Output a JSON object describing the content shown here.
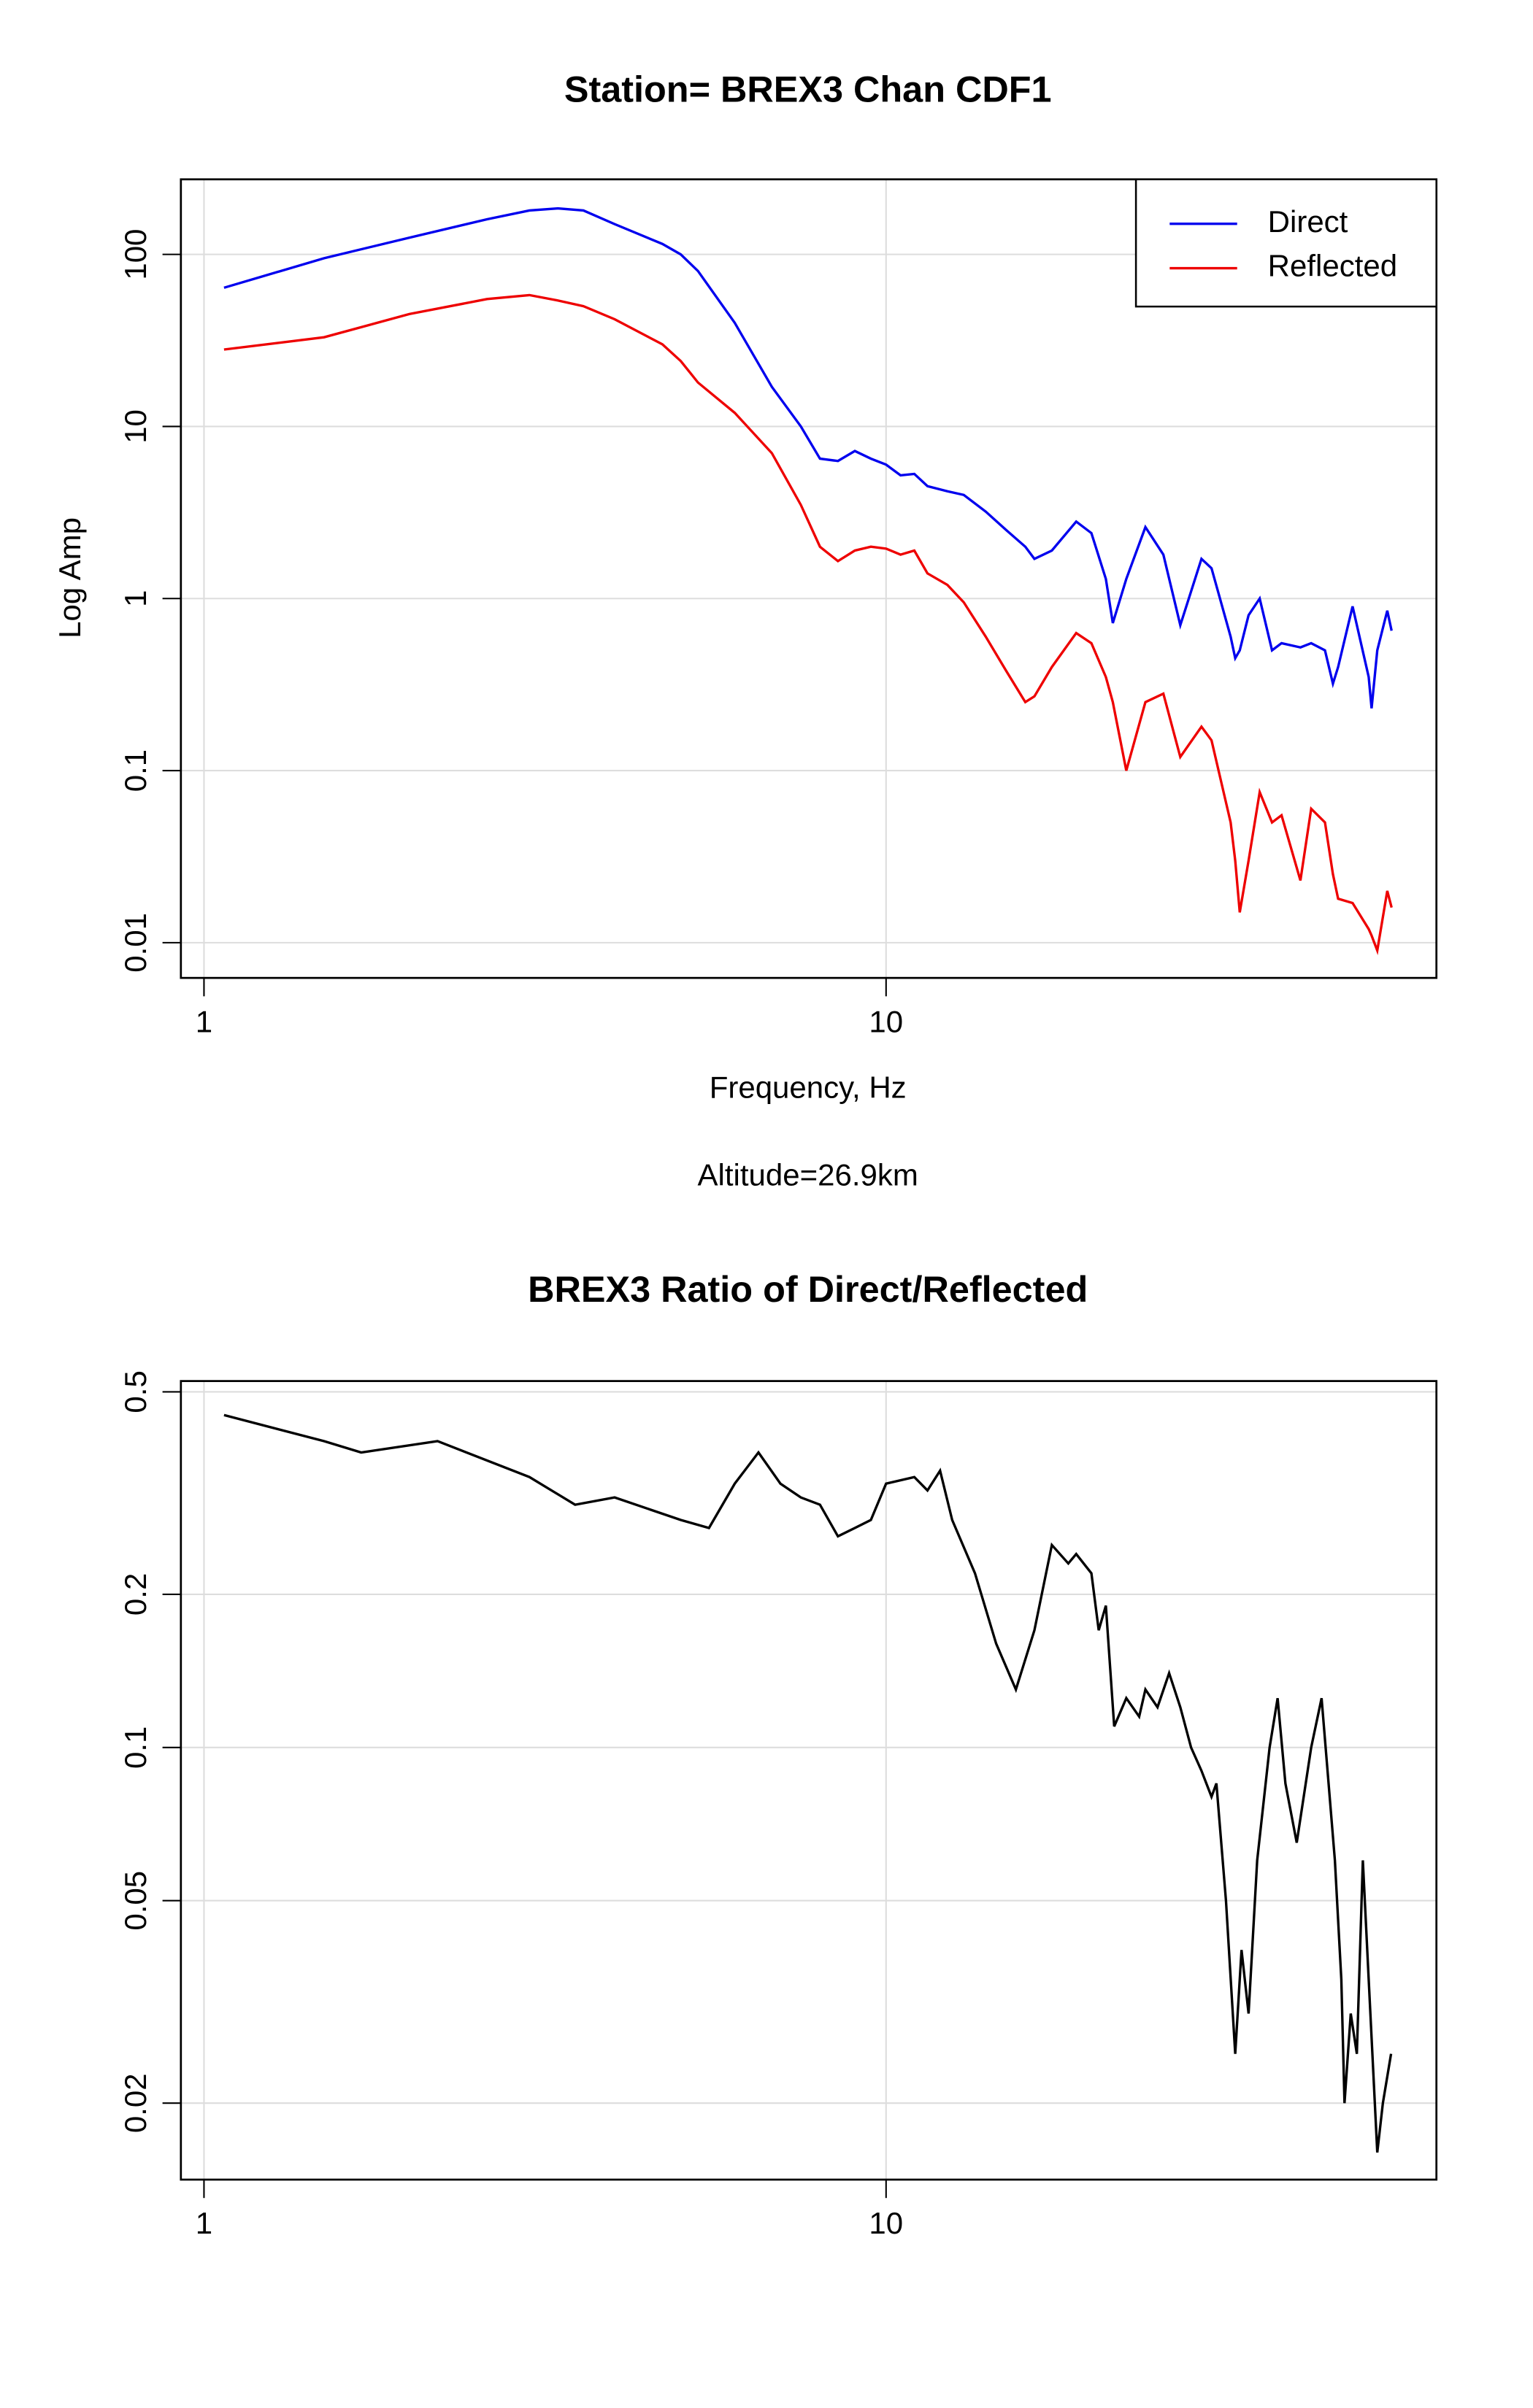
{
  "chart_data": [
    {
      "type": "line",
      "title": "Station= BREX3 Chan CDF1",
      "xlabel": "Frequency, Hz",
      "ylabel": "Log Amp",
      "subtitle": "Altitude=26.9km",
      "x": [
        1.07,
        1.5,
        2,
        2.6,
        3,
        3.3,
        3.6,
        4,
        4.7,
        5,
        5.3,
        6,
        6.8,
        7.5,
        8,
        8.5,
        9,
        9.5,
        10,
        10.5,
        11,
        11.5,
        12.3,
        13,
        14,
        15,
        16,
        16.5,
        17.5,
        19,
        20,
        21,
        21.5,
        22.5,
        24,
        25.5,
        27,
        29,
        30,
        32,
        32.5,
        33,
        34,
        35.3,
        36.8,
        38,
        40.5,
        42,
        44,
        45.2,
        46,
        48.3,
        51,
        51.5,
        52.5,
        54.3,
        55.1
      ],
      "series": [
        {
          "name": "Direct",
          "color": "#0000ee",
          "values": [
            64,
            95,
            125,
            160,
            180,
            185,
            180,
            150,
            115,
            100,
            80,
            40,
            17,
            10,
            6.5,
            6.3,
            7.2,
            6.5,
            6,
            5.2,
            5.3,
            4.5,
            4.2,
            4,
            3.2,
            2.5,
            2.0,
            1.7,
            1.9,
            2.8,
            2.4,
            1.3,
            0.72,
            1.3,
            2.6,
            1.8,
            0.7,
            1.7,
            1.5,
            0.6,
            0.45,
            0.5,
            0.8,
            1.0,
            0.5,
            0.55,
            0.52,
            0.55,
            0.5,
            0.32,
            0.4,
            0.9,
            0.35,
            0.23,
            0.5,
            0.85,
            0.65
          ]
        },
        {
          "name": "Reflected",
          "color": "#ee0000",
          "values": [
            28,
            33,
            45,
            55,
            58,
            54,
            50,
            42,
            30,
            24,
            18,
            12,
            7,
            3.5,
            2,
            1.65,
            1.9,
            2.0,
            1.95,
            1.8,
            1.9,
            1.4,
            1.2,
            0.95,
            0.6,
            0.38,
            0.25,
            0.27,
            0.4,
            0.63,
            0.55,
            0.35,
            0.25,
            0.1,
            0.25,
            0.28,
            0.12,
            0.18,
            0.15,
            0.05,
            0.03,
            0.015,
            0.03,
            0.075,
            0.05,
            0.055,
            0.023,
            0.06,
            0.05,
            0.025,
            0.018,
            0.017,
            0.012,
            0.011,
            0.009,
            0.02,
            0.016
          ]
        }
      ],
      "xlog": true,
      "ylog": true,
      "xlim": [
        0.925,
        64.1
      ],
      "ylim": [
        0.00624,
        273
      ],
      "xticks": [
        1,
        10
      ],
      "yticks": [
        0.01,
        0.1,
        1,
        10,
        100
      ],
      "grid": true,
      "legend": "top-right"
    },
    {
      "type": "line",
      "title": "BREX3 Ratio of Direct/Reflected",
      "x": [
        1.07,
        1.5,
        1.7,
        2.2,
        3,
        3.5,
        4,
        5,
        5.5,
        6,
        6.5,
        7,
        7.5,
        8,
        8.5,
        9,
        9.5,
        10,
        11,
        11.5,
        12,
        12.5,
        13.5,
        14.5,
        15.5,
        16.5,
        17.5,
        18.5,
        19,
        20,
        20.5,
        21,
        21.6,
        22.5,
        23.5,
        24,
        25,
        26,
        27,
        28,
        29,
        30,
        30.5,
        31.5,
        32.5,
        33.2,
        34,
        35,
        36.5,
        37.5,
        38.5,
        40,
        42,
        43.5,
        45.5,
        46.5,
        47,
        48,
        49,
        50,
        51,
        52.5,
        53.5,
        55
      ],
      "series": [
        {
          "color": "#000000",
          "values": [
            0.45,
            0.4,
            0.38,
            0.4,
            0.34,
            0.3,
            0.31,
            0.28,
            0.27,
            0.33,
            0.38,
            0.33,
            0.31,
            0.3,
            0.26,
            0.27,
            0.28,
            0.33,
            0.34,
            0.32,
            0.35,
            0.28,
            0.22,
            0.16,
            0.13,
            0.17,
            0.25,
            0.23,
            0.24,
            0.22,
            0.17,
            0.19,
            0.11,
            0.125,
            0.115,
            0.13,
            0.12,
            0.14,
            0.12,
            0.1,
            0.09,
            0.08,
            0.085,
            0.05,
            0.025,
            0.04,
            0.03,
            0.06,
            0.1,
            0.125,
            0.085,
            0.065,
            0.1,
            0.125,
            0.06,
            0.035,
            0.02,
            0.03,
            0.025,
            0.06,
            0.035,
            0.016,
            0.02,
            0.025
          ]
        }
      ],
      "xlog": true,
      "ylog": true,
      "xlim": [
        0.925,
        64.1
      ],
      "ylim": [
        0.01415,
        0.525
      ],
      "xticks": [
        1,
        10
      ],
      "yticks": [
        0.02,
        0.05,
        0.1,
        0.2,
        0.5
      ],
      "grid": true
    }
  ]
}
